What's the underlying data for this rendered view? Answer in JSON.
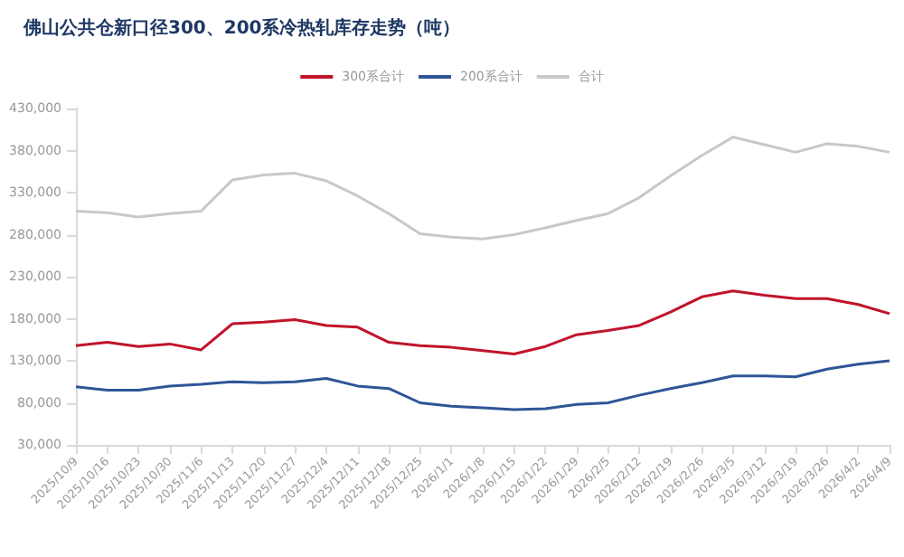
{
  "chart_data": {
    "type": "line",
    "title": "佛山公共仓新口径300、200系冷热轧库存走势（吨）",
    "categories": [
      "2025/10/9",
      "2025/10/16",
      "2025/10/23",
      "2025/10/30",
      "2025/11/6",
      "2025/11/13",
      "2025/11/20",
      "2025/11/27",
      "2025/12/4",
      "2025/12/11",
      "2025/12/18",
      "2025/12/25",
      "2026/1/1",
      "2026/1/8",
      "2026/1/15",
      "2026/1/22",
      "2026/1/29",
      "2026/2/5",
      "2026/2/12",
      "2026/2/19",
      "2026/2/26",
      "2026/3/5",
      "2026/3/12",
      "2026/3/19",
      "2026/3/26",
      "2026/4/2",
      "2026/4/9"
    ],
    "series": [
      {
        "name": "300系合计",
        "color": "#c0142b",
        "values": [
          148000,
          152000,
          147000,
          150000,
          143000,
          174000,
          176000,
          179000,
          172000,
          170000,
          152000,
          148000,
          146000,
          142000,
          138000,
          147000,
          161000,
          166000,
          172000,
          188000,
          206000,
          213000,
          208000,
          204000,
          204000,
          197000,
          186000
        ]
      },
      {
        "name": "200系合计",
        "color": "#2f5597",
        "values": [
          99000,
          95000,
          95000,
          100000,
          102000,
          105000,
          104000,
          105000,
          109000,
          100000,
          97000,
          80000,
          76000,
          74000,
          72000,
          73000,
          78000,
          80000,
          89000,
          97000,
          104000,
          112000,
          112000,
          111000,
          120000,
          126000,
          130000
        ]
      },
      {
        "name": "合计",
        "color": "#c8c8c8",
        "values": [
          308000,
          306000,
          301000,
          305000,
          308000,
          345000,
          351000,
          353000,
          344000,
          326000,
          305000,
          281000,
          277000,
          275000,
          280000,
          288000,
          297000,
          305000,
          324000,
          350000,
          374000,
          396000,
          387000,
          378000,
          388000,
          385000,
          378000
        ]
      }
    ],
    "ylim": [
      30000,
      430000
    ],
    "yticks": [
      {
        "value": 30000,
        "label": "30,000"
      },
      {
        "value": 80000,
        "label": "80,000"
      },
      {
        "value": 130000,
        "label": "130,000"
      },
      {
        "value": 180000,
        "label": "180,000"
      },
      {
        "value": 230000,
        "label": "230,000"
      },
      {
        "value": 280000,
        "label": "280,000"
      },
      {
        "value": 330000,
        "label": "330,000"
      },
      {
        "value": 380000,
        "label": "380,000"
      },
      {
        "value": 430000,
        "label": "430,000"
      }
    ],
    "grid": false,
    "legend": "top",
    "marker": "none",
    "line_style": "solid"
  }
}
